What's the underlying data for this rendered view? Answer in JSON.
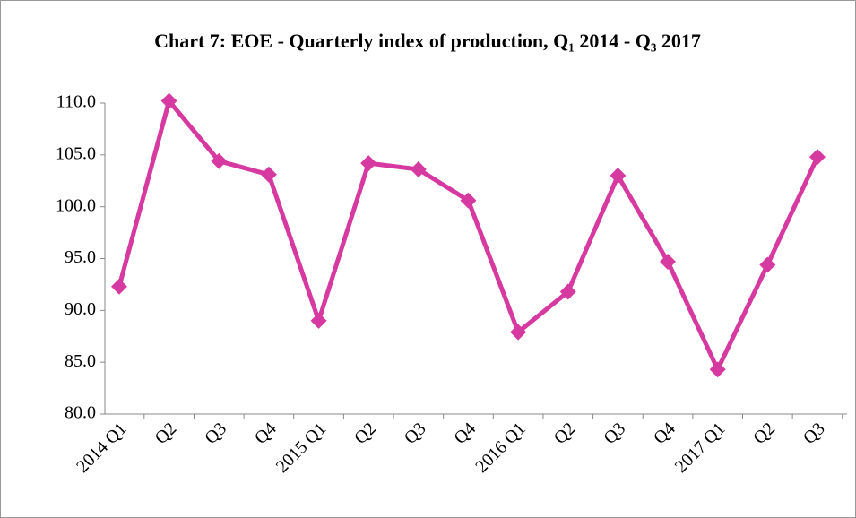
{
  "chart_data": {
    "type": "line",
    "title": "Chart 7: EOE - Quarterly index of production, Q₁ 2014 - Q₃ 2017",
    "categories": [
      "2014 Q1",
      "Q2",
      "Q3",
      "Q4",
      "2015 Q1",
      "Q2",
      "Q3",
      "Q4",
      "2016 Q1",
      "Q2",
      "Q3",
      "Q4",
      "2017 Q1",
      "Q2",
      "Q3"
    ],
    "values": [
      92.3,
      110.2,
      104.4,
      103.1,
      89.0,
      104.2,
      103.6,
      100.6,
      87.9,
      91.8,
      103.0,
      94.7,
      84.3,
      94.4,
      104.8
    ],
    "color": "#d6399f",
    "ylim": [
      80,
      110
    ],
    "yticks": [
      {
        "value": 80,
        "label": "80.0"
      },
      {
        "value": 85,
        "label": "85.0"
      },
      {
        "value": 90,
        "label": "90.0"
      },
      {
        "value": 95,
        "label": "95.0"
      },
      {
        "value": 100,
        "label": "100.0"
      },
      {
        "value": 105,
        "label": "105.0"
      },
      {
        "value": 110,
        "label": "110.0"
      }
    ],
    "grid": false
  }
}
